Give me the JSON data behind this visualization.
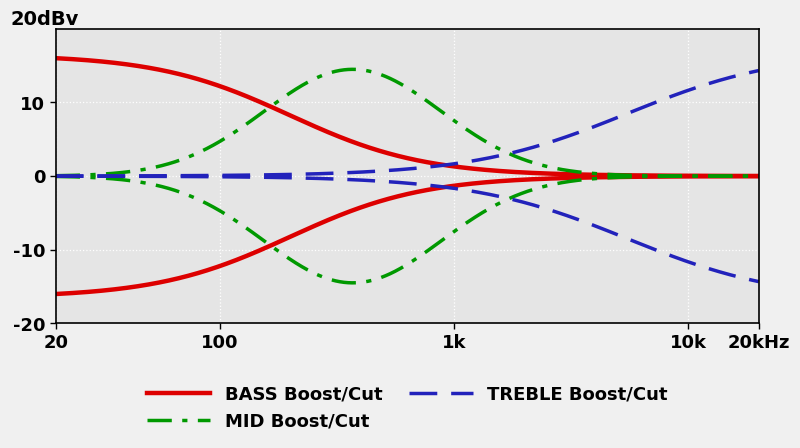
{
  "ylabel": "20dBv",
  "ylim": [
    -20,
    20
  ],
  "yticks": [
    -20,
    -10,
    0,
    10
  ],
  "ytick_labels": [
    "-20",
    "-10",
    "0",
    "10"
  ],
  "xtick_positions": [
    20,
    100,
    1000,
    10000,
    20000
  ],
  "xtick_labels": [
    "20",
    "100",
    "1k",
    "10k",
    "20kHz"
  ],
  "bg_color": "#e5e5e5",
  "fig_color": "#f0f0f0",
  "grid_color": "#ffffff",
  "bass_color": "#dd0000",
  "mid_color": "#009900",
  "treble_color": "#2222bb",
  "bass_peak": 16.5,
  "mid_peak": 14.5,
  "treble_peak": 17.0,
  "bass_fc": 200,
  "bass_slope": 3.5,
  "mid_fc": 370,
  "mid_q": 3.5,
  "treble_fc": 5500,
  "treble_slope": 3.0
}
